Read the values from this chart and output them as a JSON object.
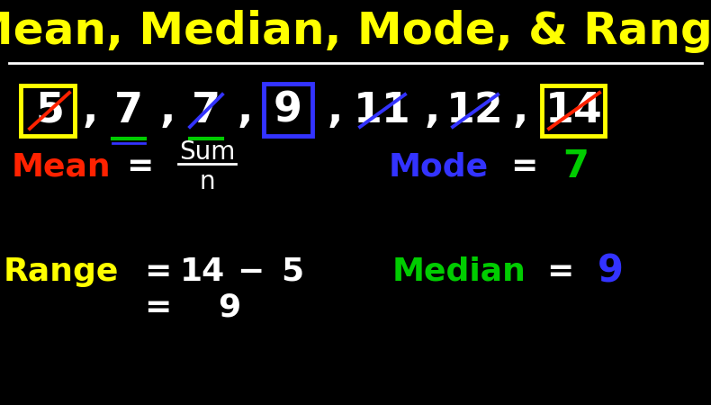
{
  "background_color": "#000000",
  "title": "Mean, Median, Mode, & Range",
  "title_color": "#FFFF00",
  "title_fontsize": 36,
  "white": "#FFFFFF",
  "red": "#FF2200",
  "blue": "#3333FF",
  "green": "#00CC00",
  "yellow": "#FFFF00",
  "mean_color": "#FF2200",
  "mode_color": "#3333FF",
  "range_color": "#FFFF00",
  "median_color": "#00CC00",
  "mode_value_color": "#00CC00",
  "median_value_color": "#3333FF"
}
